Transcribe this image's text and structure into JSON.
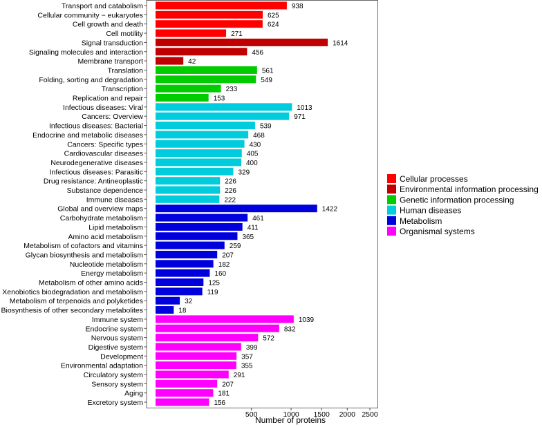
{
  "chart_data": {
    "type": "bar",
    "orientation": "horizontal",
    "xlabel": "Number of proteins",
    "xscale": "sqrt",
    "xlim": [
      0,
      2750
    ],
    "xticks": [
      500,
      1000,
      1500,
      2000,
      2500
    ],
    "grid": false,
    "legend_position": "right",
    "groups": [
      {
        "name": "Cellular processes",
        "color": "#FF0000"
      },
      {
        "name": "Environmental information processing",
        "color": "#C00000"
      },
      {
        "name": "Genetic information processing",
        "color": "#00CC00"
      },
      {
        "name": "Human diseases",
        "color": "#00CCDD"
      },
      {
        "name": "Metabolism",
        "color": "#0000DD"
      },
      {
        "name": "Organismal systems",
        "color": "#FF00FF"
      }
    ],
    "bars": [
      {
        "label": "Transport and catabolism",
        "value": 938,
        "group": 0
      },
      {
        "label": "Cellular community − eukaryotes",
        "value": 625,
        "group": 0
      },
      {
        "label": "Cell growth and death",
        "value": 624,
        "group": 0
      },
      {
        "label": "Cell motility",
        "value": 271,
        "group": 0
      },
      {
        "label": "Signal transduction",
        "value": 1614,
        "group": 1
      },
      {
        "label": "Signaling molecules and interaction",
        "value": 456,
        "group": 1
      },
      {
        "label": "Membrane transport",
        "value": 42,
        "group": 1
      },
      {
        "label": "Translation",
        "value": 561,
        "group": 2
      },
      {
        "label": "Folding, sorting and degradation",
        "value": 549,
        "group": 2
      },
      {
        "label": "Transcription",
        "value": 233,
        "group": 2
      },
      {
        "label": "Replication and repair",
        "value": 153,
        "group": 2
      },
      {
        "label": "Infectious diseases: Viral",
        "value": 1013,
        "group": 3
      },
      {
        "label": "Cancers: Overview",
        "value": 971,
        "group": 3
      },
      {
        "label": "Infectious diseases: Bacterial",
        "value": 539,
        "group": 3
      },
      {
        "label": "Endocrine and metabolic diseases",
        "value": 468,
        "group": 3
      },
      {
        "label": "Cancers: Specific types",
        "value": 430,
        "group": 3
      },
      {
        "label": "Cardiovascular diseases",
        "value": 405,
        "group": 3
      },
      {
        "label": "Neurodegenerative diseases",
        "value": 400,
        "group": 3
      },
      {
        "label": "Infectious diseases: Parasitic",
        "value": 329,
        "group": 3
      },
      {
        "label": "Drug resistance: Antineoplastic",
        "value": 226,
        "group": 3
      },
      {
        "label": "Substance dependence",
        "value": 226,
        "group": 3
      },
      {
        "label": "Immune diseases",
        "value": 222,
        "group": 3
      },
      {
        "label": "Global and overview maps",
        "value": 1422,
        "group": 4
      },
      {
        "label": "Carbohydrate metabolism",
        "value": 461,
        "group": 4
      },
      {
        "label": "Lipid metabolism",
        "value": 411,
        "group": 4
      },
      {
        "label": "Amino acid metabolism",
        "value": 365,
        "group": 4
      },
      {
        "label": "Metabolism of cofactors and vitamins",
        "value": 259,
        "group": 4
      },
      {
        "label": "Glycan biosynthesis and metabolism",
        "value": 207,
        "group": 4
      },
      {
        "label": "Nucleotide metabolism",
        "value": 182,
        "group": 4
      },
      {
        "label": "Energy metabolism",
        "value": 160,
        "group": 4
      },
      {
        "label": "Metabolism of other amino acids",
        "value": 125,
        "group": 4
      },
      {
        "label": "Xenobiotics biodegradation and metabolism",
        "value": 119,
        "group": 4
      },
      {
        "label": "Metabolism of terpenoids and polyketides",
        "value": 32,
        "group": 4
      },
      {
        "label": "Biosynthesis of other secondary metabolites",
        "value": 18,
        "group": 4
      },
      {
        "label": "Immune system",
        "value": 1039,
        "group": 5
      },
      {
        "label": "Endocrine system",
        "value": 832,
        "group": 5
      },
      {
        "label": "Nervous system",
        "value": 572,
        "group": 5
      },
      {
        "label": "Digestive system",
        "value": 399,
        "group": 5
      },
      {
        "label": "Development",
        "value": 357,
        "group": 5
      },
      {
        "label": "Environmental adaptation",
        "value": 355,
        "group": 5
      },
      {
        "label": "Circulatory system",
        "value": 291,
        "group": 5
      },
      {
        "label": "Sensory system",
        "value": 207,
        "group": 5
      },
      {
        "label": "Aging",
        "value": 181,
        "group": 5
      },
      {
        "label": "Excretory system",
        "value": 156,
        "group": 5
      }
    ]
  }
}
